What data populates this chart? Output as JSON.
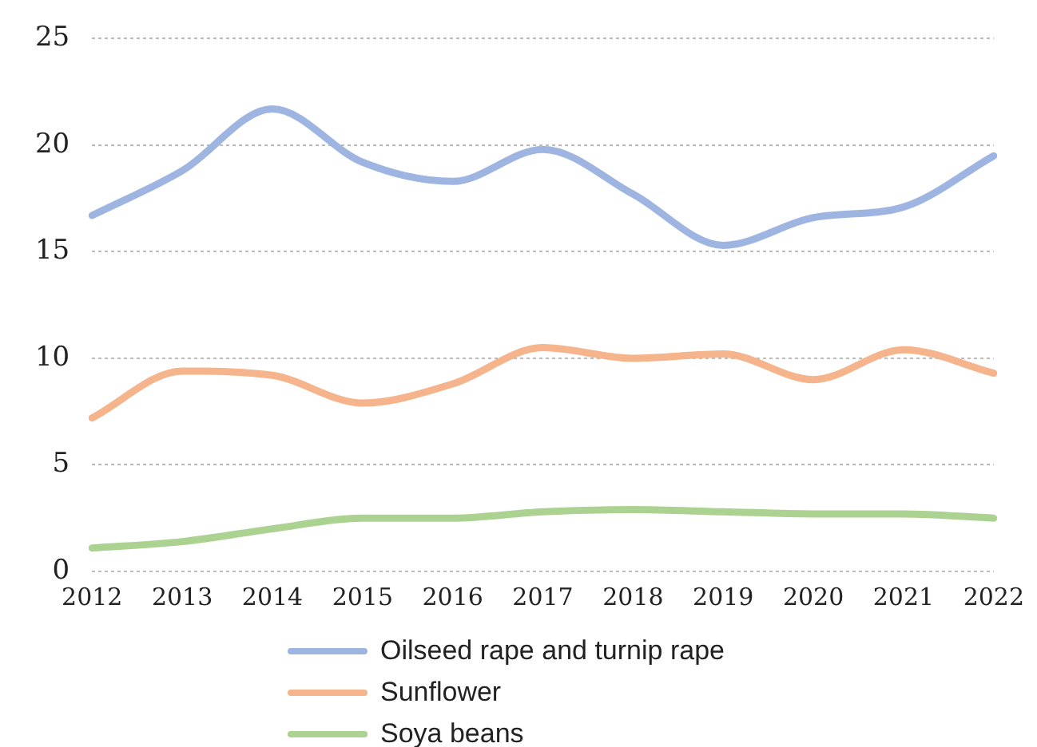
{
  "chart_data": {
    "type": "line",
    "categories": [
      "2012",
      "2013",
      "2014",
      "2015",
      "2016",
      "2017",
      "2018",
      "2019",
      "2020",
      "2021",
      "2022"
    ],
    "series": [
      {
        "name": "Oilseed rape and turnip rape",
        "color": "#9fb5e1",
        "values": [
          16.7,
          18.8,
          21.7,
          19.2,
          18.3,
          19.8,
          17.7,
          15.3,
          16.6,
          17.1,
          19.5
        ]
      },
      {
        "name": "Sunflower",
        "color": "#f5b48c",
        "values": [
          7.2,
          9.4,
          9.2,
          7.9,
          8.8,
          10.5,
          10.0,
          10.2,
          9.0,
          10.4,
          9.3
        ]
      },
      {
        "name": "Soya beans",
        "color": "#acd291",
        "values": [
          1.1,
          1.4,
          2.0,
          2.5,
          2.5,
          2.8,
          2.9,
          2.8,
          2.7,
          2.7,
          2.5
        ]
      }
    ],
    "ylim": [
      0,
      25
    ],
    "yticks": [
      0,
      5,
      10,
      15,
      20,
      25
    ],
    "grid": "y",
    "legend": "bottom",
    "marker": "none",
    "line_style": "solid"
  }
}
